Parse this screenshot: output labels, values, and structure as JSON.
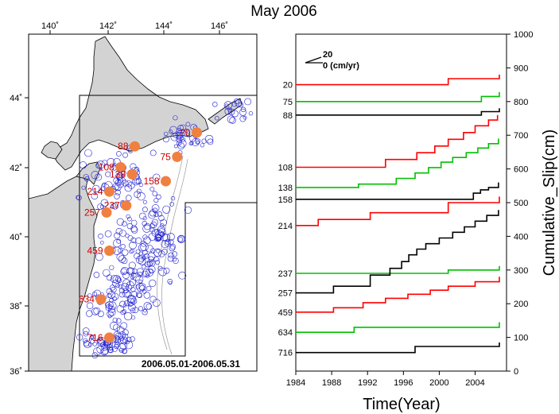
{
  "title": "May 2006",
  "colors": {
    "red": "#ff0000",
    "green": "#00c000",
    "black": "#000000",
    "land": "#d3d3d3",
    "epicenter": "#2020d0",
    "event": "#f08040",
    "event_label": "#cc0000"
  },
  "map": {
    "lon_ticks": [
      "140˚",
      "142˚",
      "144˚",
      "146˚"
    ],
    "lat_ticks": [
      "44˚",
      "42˚",
      "40˚",
      "38˚",
      "36˚"
    ],
    "date_range": "2006.05.01-2006.05.31",
    "events": [
      {
        "label": "20",
        "lon": 145.2,
        "lat": 43.0
      },
      {
        "label": "88",
        "lon": 143.0,
        "lat": 42.6
      },
      {
        "label": "75",
        "lon": 144.5,
        "lat": 42.3
      },
      {
        "label": "108",
        "lon": 142.5,
        "lat": 42.0
      },
      {
        "label": "138",
        "lon": 142.9,
        "lat": 41.8
      },
      {
        "label": "158",
        "lon": 144.1,
        "lat": 41.6
      },
      {
        "label": "214",
        "lon": 142.1,
        "lat": 41.3
      },
      {
        "label": "237",
        "lon": 142.7,
        "lat": 40.9
      },
      {
        "label": "257",
        "lon": 142.0,
        "lat": 40.7
      },
      {
        "label": "459",
        "lon": 142.1,
        "lat": 39.6
      },
      {
        "label": "634",
        "lon": 141.8,
        "lat": 38.2
      },
      {
        "label": "716",
        "lon": 142.1,
        "lat": 37.1
      }
    ]
  },
  "chart_data": {
    "type": "line",
    "title": "",
    "xlabel": "Time(Year)",
    "ylabel": "Cumulative_Slip(cm)",
    "xlim": [
      1984,
      2007.5
    ],
    "ylim": [
      0,
      1000
    ],
    "xticks": [
      "1984",
      "1988",
      "1992",
      "1996",
      "2000",
      "2004"
    ],
    "yticks": [
      "0",
      "100",
      "200",
      "300",
      "400",
      "500",
      "600",
      "700",
      "800",
      "900",
      "1000"
    ],
    "legend": {
      "top": "20",
      "bottom": "0 (cm/yr)"
    },
    "series": [
      {
        "name": "20",
        "color": "red",
        "x": [
          1984.0,
          2001.0,
          2001.0,
          2006.7,
          2006.7
        ],
        "y": [
          850,
          850,
          868,
          868,
          880
        ]
      },
      {
        "name": "75",
        "color": "green",
        "x": [
          1984.0,
          2004.7,
          2004.7,
          2006.7,
          2006.7
        ],
        "y": [
          800,
          800,
          815,
          815,
          828
        ]
      },
      {
        "name": "88",
        "color": "black",
        "x": [
          1984.0,
          2004.7,
          2004.7,
          2006.7,
          2006.7
        ],
        "y": [
          760,
          760,
          770,
          770,
          780
        ]
      },
      {
        "name": "108",
        "color": "red",
        "x": [
          1984.0,
          1994.0,
          1994.0,
          1997.5,
          1997.5,
          1999.5,
          1999.5,
          2001.0,
          2001.0,
          2002.7,
          2002.7,
          2004.0,
          2004.0,
          2005.5,
          2005.5,
          2006.5,
          2006.5
        ],
        "y": [
          605,
          605,
          628,
          628,
          648,
          648,
          668,
          668,
          688,
          688,
          708,
          708,
          728,
          728,
          745,
          745,
          760
        ]
      },
      {
        "name": "138",
        "color": "green",
        "x": [
          1984.0,
          1991.0,
          1991.0,
          1995.2,
          1995.2,
          1997.3,
          1997.3,
          1998.8,
          1998.8,
          2000.2,
          2000.2,
          2001.5,
          2001.5,
          2003.0,
          2003.0,
          2004.3,
          2004.3,
          2005.5,
          2005.5,
          2006.6,
          2006.6
        ],
        "y": [
          545,
          545,
          555,
          555,
          572,
          572,
          588,
          588,
          604,
          604,
          620,
          620,
          634,
          634,
          648,
          648,
          662,
          662,
          675,
          675,
          690
        ]
      },
      {
        "name": "158",
        "color": "black",
        "x": [
          1984.0,
          2003.8,
          2003.8,
          2004.6,
          2004.6,
          2005.5,
          2005.5,
          2006.6,
          2006.6
        ],
        "y": [
          510,
          510,
          528,
          528,
          538,
          538,
          545,
          545,
          560
        ]
      },
      {
        "name": "214",
        "color": "red",
        "x": [
          1984.0,
          1986.5,
          1986.5,
          1992.3,
          1992.3,
          2001.0,
          2001.0,
          2006.7,
          2006.7
        ],
        "y": [
          432,
          432,
          450,
          450,
          470,
          470,
          500,
          500,
          518
        ]
      },
      {
        "name": "237",
        "color": "green",
        "x": [
          1984.0,
          2001.0,
          2001.0,
          2006.7,
          2006.7
        ],
        "y": [
          290,
          290,
          300,
          300,
          312
        ]
      },
      {
        "name": "257",
        "color": "black",
        "x": [
          1984.0,
          1988.2,
          1988.2,
          1992.3,
          1992.3,
          1994.5,
          1994.5,
          1995.8,
          1995.8,
          1996.6,
          1996.6,
          1997.5,
          1997.5,
          1998.5,
          1998.5,
          2000.0,
          2000.0,
          2001.5,
          2001.5,
          2002.8,
          2002.8,
          2004.0,
          2004.0,
          2005.3,
          2005.3,
          2006.6,
          2006.6
        ],
        "y": [
          232,
          232,
          252,
          252,
          285,
          285,
          305,
          305,
          325,
          325,
          345,
          345,
          362,
          362,
          378,
          378,
          395,
          395,
          412,
          412,
          428,
          428,
          445,
          445,
          462,
          462,
          478
        ]
      },
      {
        "name": "459",
        "color": "red",
        "x": [
          1984.0,
          1988.2,
          1988.2,
          1991.5,
          1991.5,
          1994.0,
          1994.0,
          1996.5,
          1996.5,
          1999.0,
          1999.0,
          2001.0,
          2001.0,
          2004.0,
          2004.0,
          2006.7,
          2006.7
        ],
        "y": [
          175,
          175,
          188,
          188,
          203,
          203,
          216,
          216,
          228,
          228,
          240,
          240,
          252,
          252,
          265,
          265,
          280
        ]
      },
      {
        "name": "634",
        "color": "green",
        "x": [
          1984.0,
          1990.5,
          1990.5,
          2006.7,
          2006.7
        ],
        "y": [
          115,
          115,
          130,
          130,
          145
        ]
      },
      {
        "name": "716",
        "color": "black",
        "x": [
          1984.0,
          1997.3,
          1997.3,
          2006.7,
          2006.7
        ],
        "y": [
          55,
          55,
          73,
          73,
          85
        ]
      }
    ]
  }
}
